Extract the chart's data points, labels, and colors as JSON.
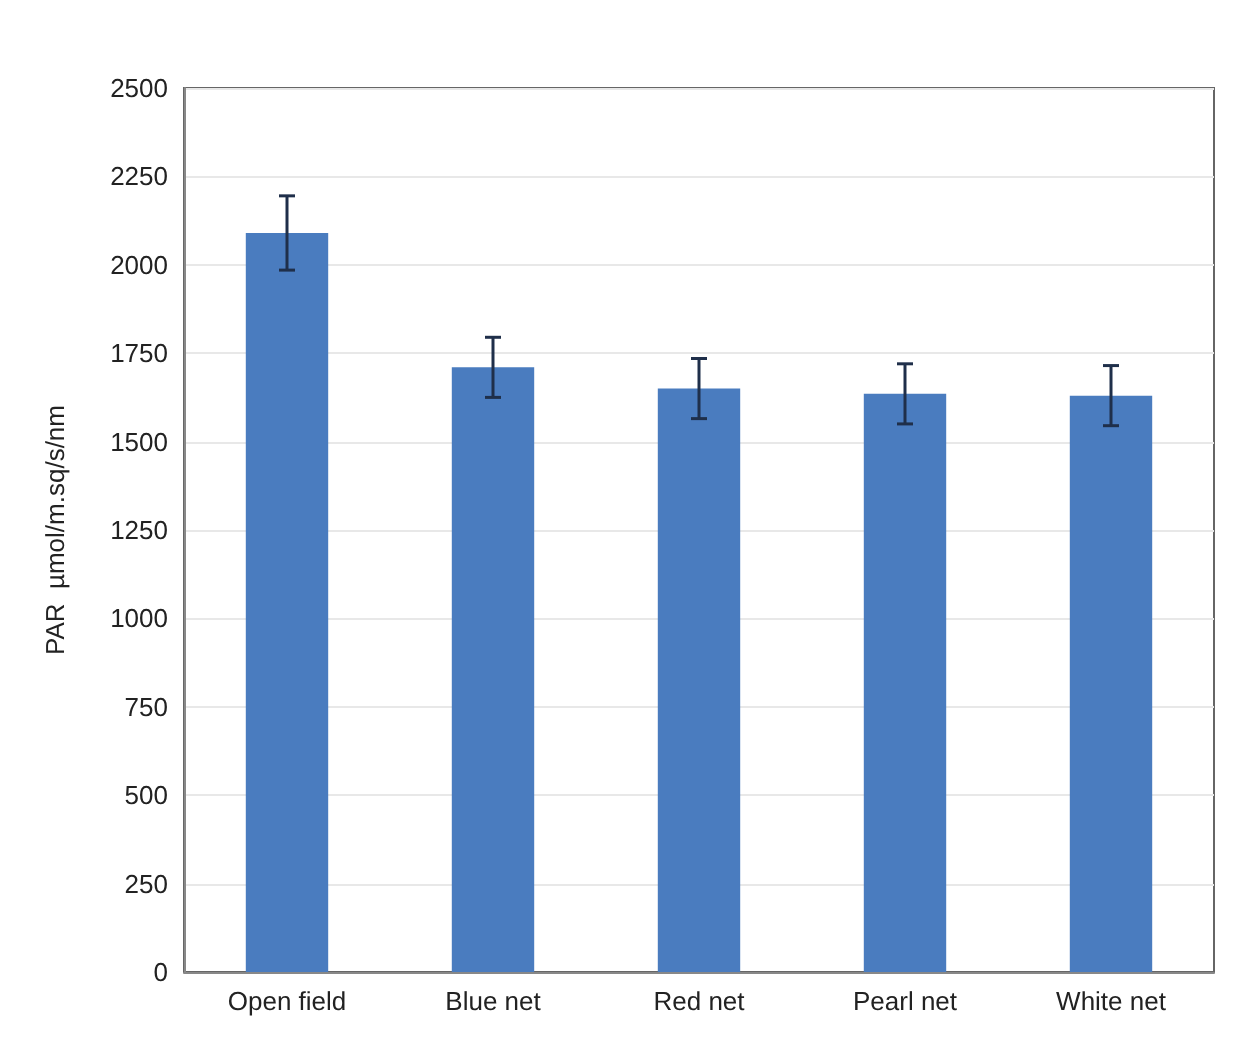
{
  "chart_data": {
    "type": "bar",
    "ylabel": "PAR  µmol/m.sq/s/nm",
    "categories": [
      "Open field",
      "Blue net",
      "Red net",
      "Pearl net",
      "White net"
    ],
    "values": [
      2090,
      1710,
      1650,
      1635,
      1630
    ],
    "errors": [
      105,
      85,
      85,
      85,
      85
    ],
    "color": "#4a7cbf",
    "ylim": [
      0,
      2500
    ],
    "yticks": [
      0,
      250,
      500,
      750,
      1000,
      1250,
      1500,
      1750,
      2000,
      2250,
      2500
    ],
    "grid": "y"
  }
}
